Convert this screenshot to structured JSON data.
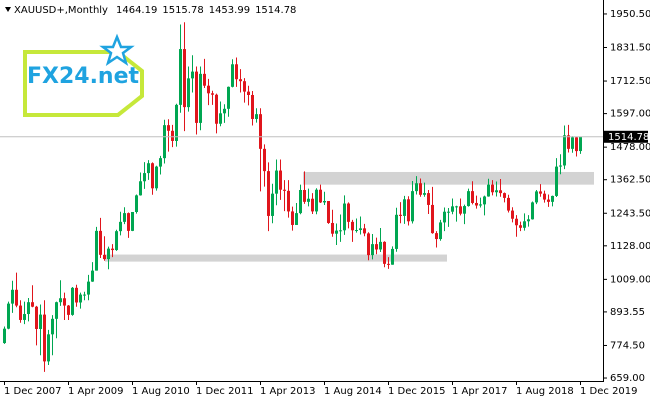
{
  "chart_data": {
    "type": "candlestick",
    "title": "XAUUSD+,Monthly",
    "logo": "FX24.net",
    "categories": [
      "1 Dec 2007",
      null,
      null,
      null,
      null,
      null,
      null,
      null,
      null,
      null,
      null,
      null,
      null,
      null,
      null,
      null,
      "1 Apr 2009",
      null,
      null,
      null,
      null,
      null,
      null,
      null,
      null,
      null,
      null,
      null,
      null,
      null,
      null,
      null,
      "1 Aug 2010",
      null,
      null,
      null,
      null,
      null,
      null,
      null,
      null,
      null,
      null,
      null,
      null,
      null,
      null,
      null,
      "1 Dec 2011",
      null,
      null,
      null,
      null,
      null,
      null,
      null,
      null,
      null,
      null,
      null,
      null,
      null,
      null,
      null,
      "1 Apr 2013",
      null,
      null,
      null,
      null,
      null,
      null,
      null,
      null,
      null,
      null,
      null,
      null,
      null,
      null,
      null,
      "1 Aug 2014",
      null,
      null,
      null,
      null,
      null,
      null,
      null,
      null,
      null,
      null,
      null,
      null,
      null,
      null,
      null,
      "1 Dec 2015",
      null,
      null,
      null,
      null,
      null,
      null,
      null,
      null,
      null,
      null,
      null,
      null,
      null,
      null,
      null,
      "1 Apr 2017",
      null,
      null,
      null,
      null,
      null,
      null,
      null,
      null,
      null,
      null,
      null,
      null,
      null,
      null,
      null,
      "1 Aug 2018",
      null,
      null,
      null,
      null,
      null,
      null,
      null,
      null,
      null,
      null,
      null,
      null,
      null,
      null,
      null,
      "1 Dec 2019"
    ],
    "open": [
      783,
      834,
      923,
      972,
      916,
      865,
      886,
      928,
      912,
      833,
      884,
      718,
      814,
      869,
      928,
      942,
      916,
      883,
      979,
      927,
      955,
      955,
      1001,
      1040,
      1181,
      1096,
      1081,
      1118,
      1113,
      1180,
      1213,
      1244,
      1181,
      1248,
      1307,
      1357,
      1386,
      1421,
      1332,
      1409,
      1439,
      1556,
      1536,
      1500,
      1628,
      1826,
      1620,
      1722,
      1746,
      1564,
      1738,
      1696,
      1669,
      1664,
      1561,
      1598,
      1614,
      1692,
      1772,
      1719,
      1712,
      1675,
      1663,
      1578,
      1595,
      1472,
      1393,
      1234,
      1313,
      1395,
      1327,
      1323,
      1250,
      1202,
      1244,
      1326,
      1284,
      1295,
      1250,
      1327,
      1282,
      1287,
      1209,
      1171,
      1182,
      1183,
      1278,
      1213,
      1183,
      1184,
      1190,
      1172,
      1095,
      1134,
      1115,
      1142,
      1064,
      1061,
      1117,
      1238,
      1234,
      1293,
      1215,
      1322,
      1350,
      1309,
      1315,
      1273,
      1173,
      1152,
      1211,
      1249,
      1249,
      1268,
      1268,
      1242,
      1269,
      1322,
      1280,
      1271,
      1275,
      1303,
      1345,
      1318,
      1325,
      1315,
      1298,
      1253,
      1224,
      1201,
      1192,
      1215,
      1222,
      1282,
      1321,
      1313,
      1292,
      1284,
      1305,
      1409,
      1413,
      1520,
      1472,
      1513,
      1464.19
    ],
    "high": [
      842,
      930,
      1004,
      1033,
      935,
      930,
      943,
      988,
      915,
      920,
      935,
      830,
      882,
      930,
      1006,
      962,
      918,
      982,
      990,
      962,
      965,
      1025,
      1070,
      1195,
      1227,
      1162,
      1125,
      1134,
      1185,
      1249,
      1265,
      1246,
      1248,
      1310,
      1388,
      1425,
      1432,
      1424,
      1412,
      1447,
      1575,
      1577,
      1557,
      1632,
      1913,
      1921,
      1764,
      1804,
      1764,
      1764,
      1791,
      1720,
      1678,
      1668,
      1640,
      1630,
      1693,
      1790,
      1796,
      1755,
      1723,
      1696,
      1677,
      1616,
      1616,
      1488,
      1424,
      1348,
      1434,
      1434,
      1361,
      1361,
      1267,
      1280,
      1345,
      1392,
      1331,
      1315,
      1332,
      1345,
      1320,
      1287,
      1256,
      1207,
      1239,
      1307,
      1282,
      1220,
      1225,
      1232,
      1206,
      1176,
      1170,
      1157,
      1191,
      1144,
      1088,
      1126,
      1263,
      1283,
      1305,
      1304,
      1358,
      1375,
      1367,
      1352,
      1326,
      1337,
      1180,
      1220,
      1264,
      1262,
      1296,
      1270,
      1296,
      1274,
      1331,
      1357,
      1306,
      1299,
      1306,
      1366,
      1361,
      1356,
      1365,
      1317,
      1309,
      1265,
      1237,
      1214,
      1243,
      1237,
      1285,
      1326,
      1347,
      1324,
      1310,
      1306,
      1439,
      1453,
      1555,
      1557,
      1517,
      1516,
      1515.78
    ],
    "low": [
      780,
      832,
      890,
      910,
      855,
      850,
      860,
      910,
      775,
      740,
      681,
      705,
      740,
      800,
      915,
      865,
      865,
      880,
      912,
      905,
      935,
      935,
      1000,
      1040,
      1085,
      1075,
      1045,
      1088,
      1110,
      1165,
      1205,
      1156,
      1180,
      1242,
      1306,
      1330,
      1362,
      1309,
      1324,
      1381,
      1420,
      1462,
      1478,
      1480,
      1600,
      1535,
      1604,
      1672,
      1523,
      1538,
      1688,
      1627,
      1628,
      1527,
      1552,
      1564,
      1586,
      1690,
      1692,
      1672,
      1636,
      1626,
      1555,
      1565,
      1321,
      1338,
      1180,
      1208,
      1272,
      1291,
      1251,
      1228,
      1182,
      1202,
      1240,
      1277,
      1268,
      1241,
      1240,
      1280,
      1273,
      1206,
      1160,
      1131,
      1142,
      1167,
      1190,
      1142,
      1175,
      1168,
      1162,
      1077,
      1080,
      1098,
      1106,
      1052,
      1046,
      1061,
      1107,
      1208,
      1206,
      1200,
      1207,
      1310,
      1302,
      1302,
      1241,
      1171,
      1122,
      1146,
      1180,
      1195,
      1240,
      1214,
      1236,
      1205,
      1267,
      1275,
      1260,
      1264,
      1236,
      1302,
      1307,
      1303,
      1302,
      1282,
      1246,
      1211,
      1160,
      1180,
      1182,
      1196,
      1221,
      1276,
      1302,
      1281,
      1266,
      1268,
      1301,
      1382,
      1400,
      1459,
      1458,
      1445,
      1453.99
    ],
    "close": [
      834,
      923,
      972,
      916,
      865,
      886,
      928,
      912,
      833,
      884,
      718,
      814,
      869,
      928,
      942,
      916,
      883,
      979,
      927,
      955,
      955,
      1001,
      1040,
      1181,
      1096,
      1081,
      1118,
      1113,
      1180,
      1213,
      1244,
      1181,
      1248,
      1307,
      1357,
      1386,
      1421,
      1332,
      1409,
      1439,
      1556,
      1536,
      1500,
      1628,
      1826,
      1620,
      1722,
      1746,
      1564,
      1738,
      1696,
      1669,
      1664,
      1561,
      1598,
      1614,
      1692,
      1772,
      1719,
      1712,
      1675,
      1663,
      1578,
      1595,
      1472,
      1393,
      1234,
      1313,
      1395,
      1327,
      1323,
      1250,
      1202,
      1244,
      1326,
      1284,
      1295,
      1250,
      1327,
      1282,
      1287,
      1209,
      1171,
      1182,
      1183,
      1278,
      1213,
      1183,
      1184,
      1190,
      1172,
      1095,
      1134,
      1115,
      1142,
      1064,
      1061,
      1117,
      1238,
      1234,
      1293,
      1215,
      1322,
      1350,
      1309,
      1315,
      1273,
      1173,
      1152,
      1211,
      1249,
      1249,
      1268,
      1268,
      1242,
      1269,
      1322,
      1280,
      1271,
      1275,
      1303,
      1345,
      1318,
      1325,
      1315,
      1298,
      1253,
      1224,
      1201,
      1192,
      1215,
      1222,
      1282,
      1321,
      1313,
      1292,
      1284,
      1305,
      1409,
      1413,
      1520,
      1472,
      1513,
      1464,
      1514.78
    ],
    "up_color": "#00a651",
    "down_color": "#e0151c",
    "zones": [
      {
        "low": 1345,
        "high": 1390
      },
      {
        "low": 1072,
        "high": 1097
      }
    ],
    "ylim": [
      652,
      2000
    ],
    "yticks": [
      {
        "value": 1950.5,
        "label": "1950.50"
      },
      {
        "value": 1831.5,
        "label": "1831.50"
      },
      {
        "value": 1712.5,
        "label": "1712.50"
      },
      {
        "value": 1597,
        "label": "1597.00"
      },
      {
        "value": 1478,
        "label": "1478.00"
      },
      {
        "value": 1362.5,
        "label": "1362.50"
      },
      {
        "value": 1243.5,
        "label": "1243.50"
      },
      {
        "value": 1128,
        "label": "1128.00"
      },
      {
        "value": 1009,
        "label": "1009.00"
      },
      {
        "value": 893.55,
        "label": "893.55"
      },
      {
        "value": 774.5,
        "label": "774.50"
      },
      {
        "value": 659,
        "label": "659.00"
      }
    ]
  }
}
